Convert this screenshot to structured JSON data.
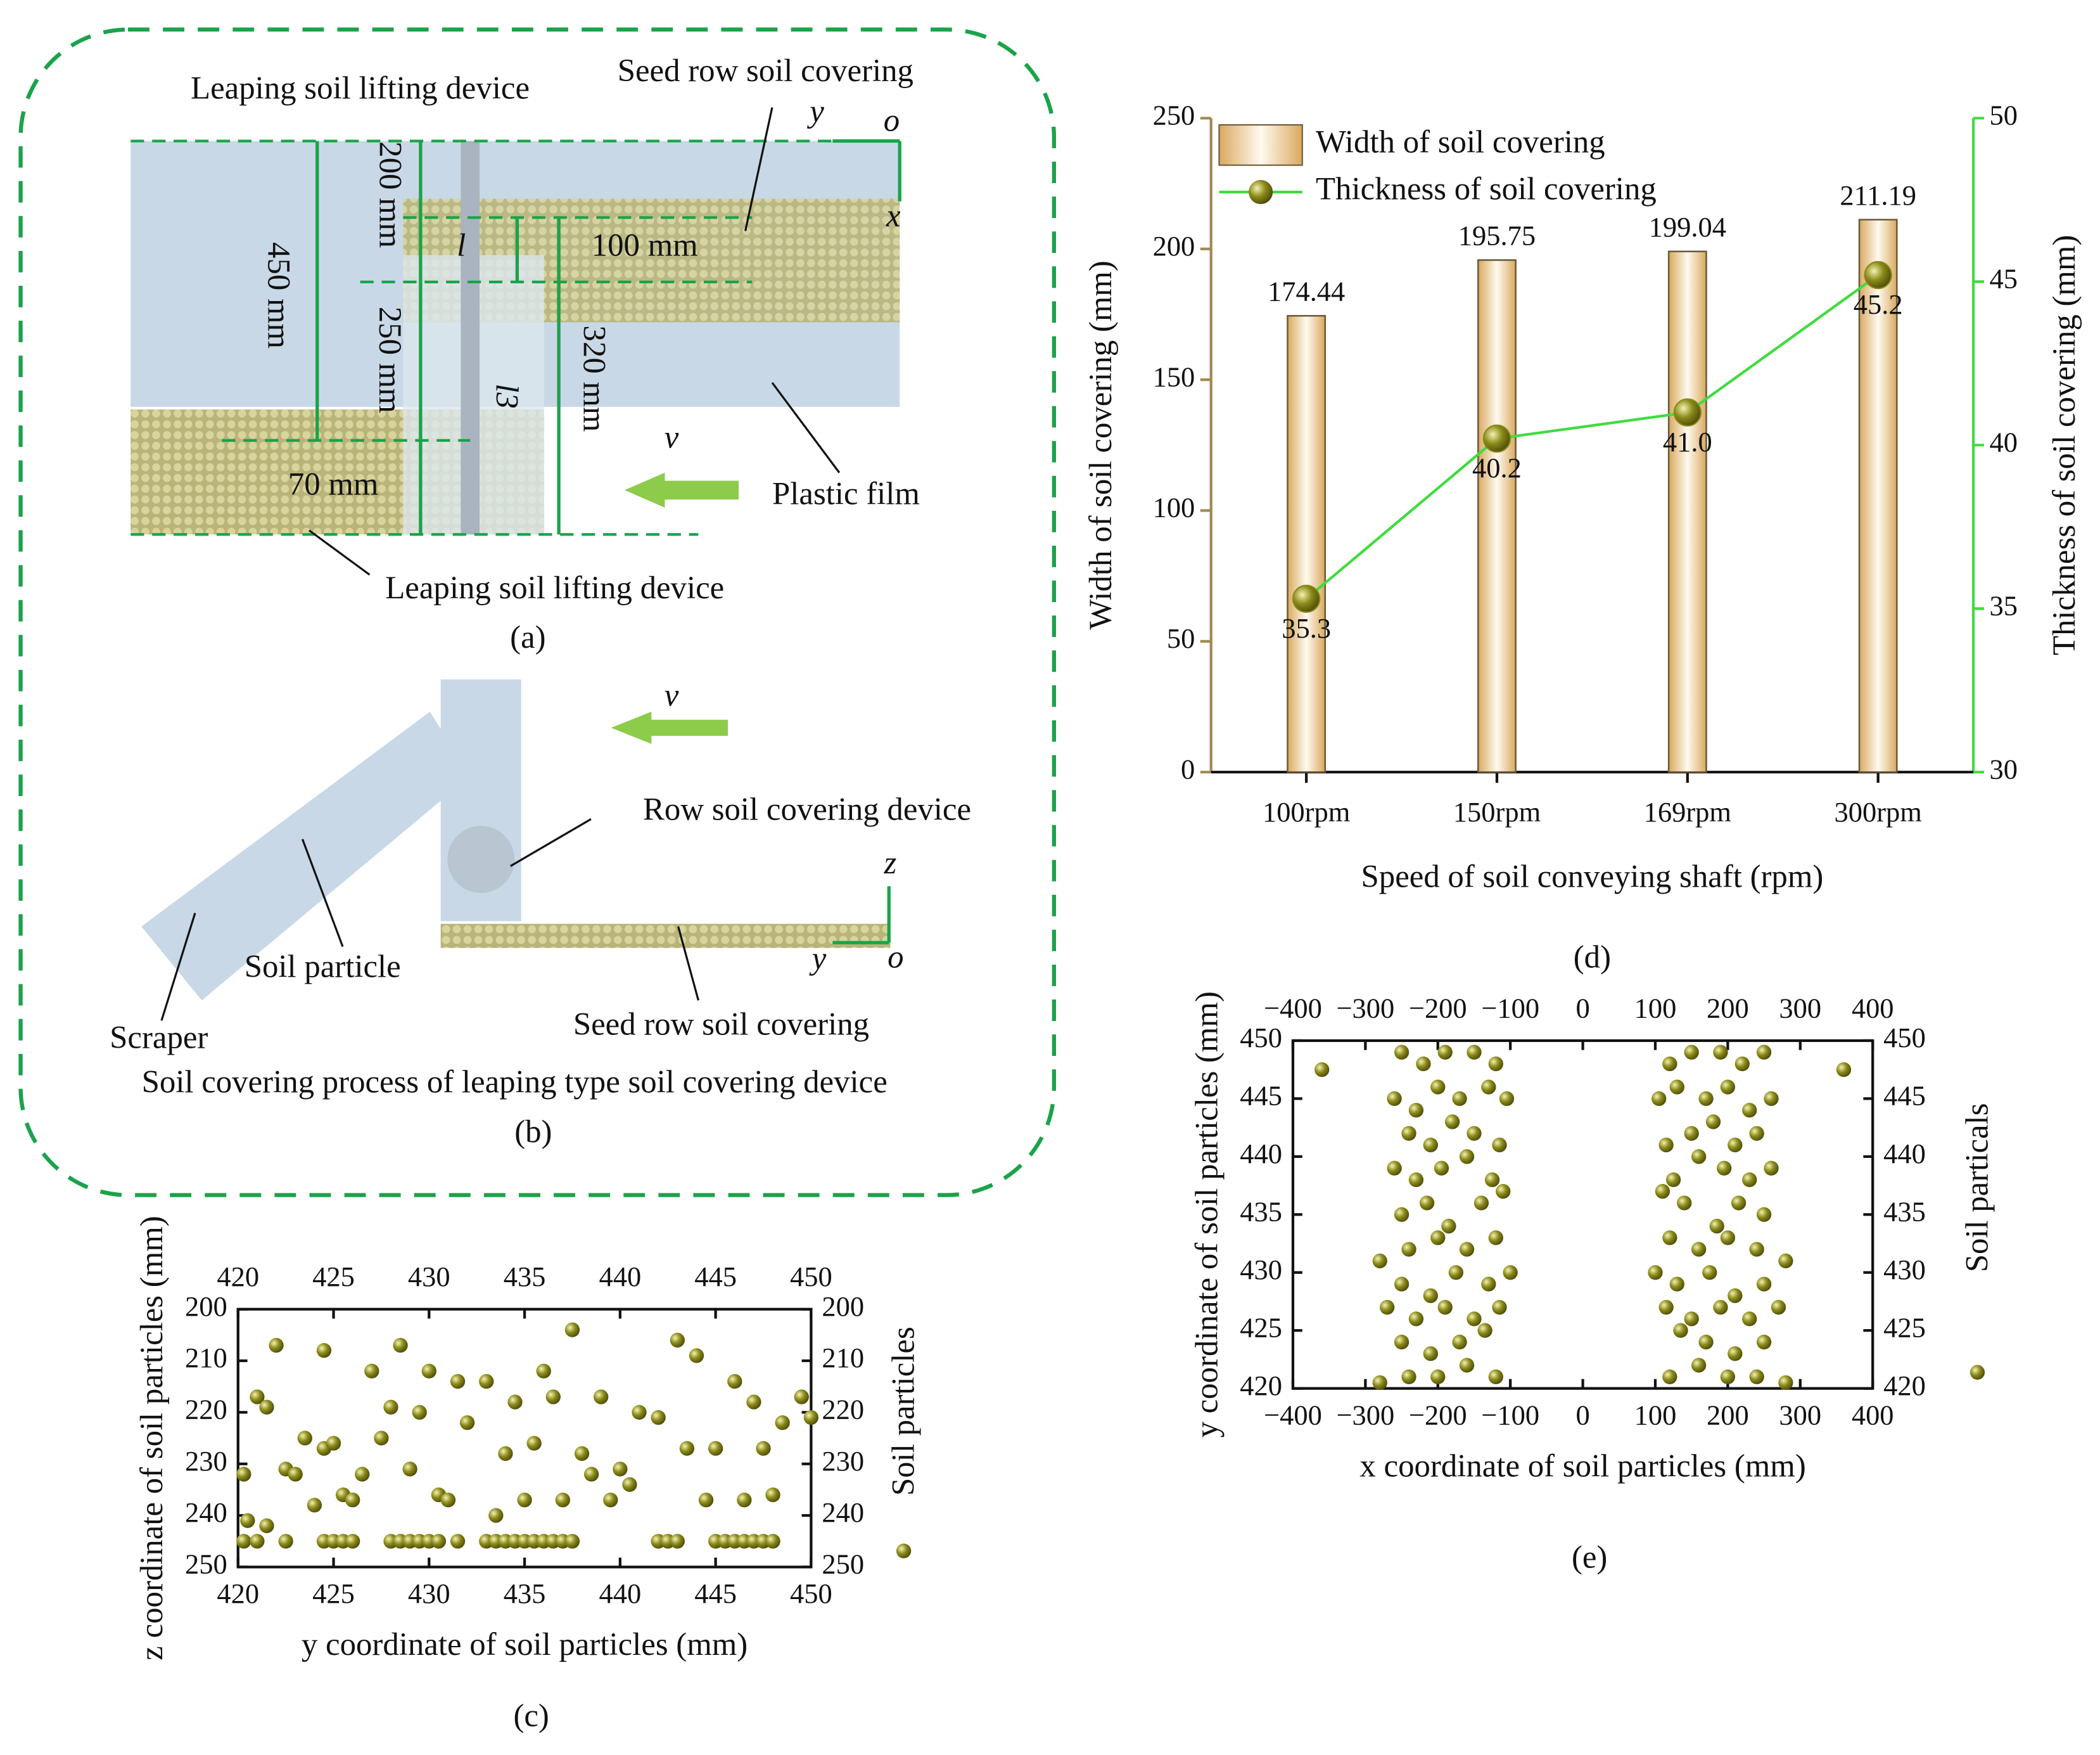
{
  "diagrams": {
    "a": {
      "top_left_label": "Leaping soil lifting device",
      "top_right_label": "Seed row soil covering",
      "axis_y": "y",
      "axis_o": "o",
      "axis_x": "x",
      "dim_450": "450 mm",
      "dim_200": "200 mm",
      "dim_250": "250 mm",
      "dim_100": "100 mm",
      "dim_320": "320 mm",
      "dim_l": "l",
      "dim_l3": "l3",
      "velocity": "v",
      "film_label": "Plastic film",
      "dim_70": "70 mm",
      "bottom_label": "Leaping soil lifting device",
      "panel_label": "(a)"
    },
    "b": {
      "velocity": "v",
      "device_label": "Row soil covering device",
      "axis_z": "z",
      "particle_label": "Soil particle",
      "axis_y": "y",
      "axis_o": "o",
      "scraper_label": "Scraper",
      "seed_label": "Seed row soil covering",
      "caption": "Soil covering process of leaping type soil covering device",
      "panel_label": "(b)"
    }
  },
  "chart_data": [
    {
      "type": "bar",
      "panel_label": "(d)",
      "x_label": "Speed of soil conveying shaft (rpm)",
      "y_label": "Width of soil covering (mm)",
      "y2_label": "Thickness of soil covering (mm)",
      "categories": [
        "100rpm",
        "150rpm",
        "169rpm",
        "300rpm"
      ],
      "ylim": [
        0,
        250
      ],
      "yticks": [
        0,
        50,
        100,
        150,
        200,
        250
      ],
      "y2lim": [
        30,
        50
      ],
      "y2ticks": [
        30,
        35,
        40,
        45,
        50
      ],
      "y_color": "#a08a55",
      "y2_color": "#3fdc3f",
      "legend": "upper left",
      "series": [
        {
          "name": "Width of soil covering",
          "color": "#e9c88e",
          "values": [
            174.44,
            195.75,
            199.04,
            211.19
          ]
        },
        {
          "name": "Thickness of soil covering",
          "kind": "line",
          "axis": "y2",
          "color": "#3fdc3f",
          "marker_color": "#8a8a1a",
          "values": [
            35.3,
            40.2,
            41.0,
            45.2
          ],
          "value_labels": [
            "35.3",
            "40.2",
            "41.0",
            "45.2"
          ]
        }
      ]
    },
    {
      "type": "scatter",
      "panel_label": "(c)",
      "y_inverted": true,
      "x_label": "y coordinate of soil particles (mm)",
      "y_label": "z coordinate of soil particles (mm)",
      "xlim": [
        420,
        450
      ],
      "xticks": [
        420,
        425,
        430,
        435,
        440,
        445,
        450
      ],
      "ylim": [
        200,
        250
      ],
      "yticks": [
        200,
        210,
        220,
        230,
        240,
        250
      ],
      "series": [
        {
          "name": "Soil particles",
          "color": "#8a8a1a",
          "x": [
            420.3,
            421,
            422.5,
            424.5,
            425,
            425.5,
            426,
            428,
            428.5,
            429,
            429.5,
            430,
            430.5,
            431.5,
            433,
            433.5,
            434,
            434.5,
            435,
            435.5,
            436,
            436.5,
            437,
            437.5,
            442,
            442.5,
            443,
            445,
            445.5,
            446,
            446.5,
            447,
            447.5,
            448,
            421,
            421.5,
            422,
            422.5,
            423,
            423.5,
            424,
            424.5,
            424.5,
            425,
            425.5,
            426,
            426.5,
            427,
            427.5,
            428,
            428.5,
            429,
            429.5,
            430,
            430.5,
            431,
            431.5,
            432,
            433,
            433.5,
            434,
            434.5,
            435,
            435.5,
            436,
            436.5,
            437,
            437.5,
            438,
            438.5,
            439,
            439.5,
            440,
            440.5,
            441,
            442,
            443,
            443.5,
            444,
            444.5,
            445,
            446,
            446.5,
            447,
            447.5,
            448,
            448.5,
            449.5,
            450,
            420.3,
            420.5,
            421.5
          ],
          "y": [
            245,
            245,
            245,
            245,
            245,
            245,
            245,
            245,
            245,
            245,
            245,
            245,
            245,
            245,
            245,
            245,
            245,
            245,
            245,
            245,
            245,
            245,
            245,
            245,
            245,
            245,
            245,
            245,
            245,
            245,
            245,
            245,
            245,
            245,
            217,
            219,
            207,
            231,
            232,
            225,
            238,
            227,
            208,
            226,
            236,
            237,
            232,
            212,
            225,
            219,
            207,
            231,
            220,
            212,
            236,
            237,
            214,
            222,
            214,
            240,
            228,
            218,
            237,
            226,
            212,
            217,
            237,
            204,
            228,
            232,
            217,
            237,
            231,
            234,
            220,
            221,
            206,
            227,
            209,
            237,
            227,
            214,
            237,
            218,
            227,
            236,
            222,
            217,
            221,
            232,
            241,
            242
          ]
        }
      ]
    },
    {
      "type": "scatter",
      "panel_label": "(e)",
      "x_label": "x coordinate of soil particles (mm)",
      "y_label": "y coordinate of soil particles (mm)",
      "xlim": [
        -400,
        400
      ],
      "xticks": [
        {
          "value": -400,
          "label": "−400"
        },
        {
          "value": -300,
          "label": "−300"
        },
        {
          "value": -200,
          "label": "−200"
        },
        {
          "value": -100,
          "label": "−100"
        },
        0,
        100,
        200,
        300,
        400
      ],
      "ylim": [
        420,
        450
      ],
      "yticks": [
        420,
        425,
        430,
        435,
        440,
        445,
        450
      ],
      "series": [
        {
          "name": "Soil particals",
          "color": "#8a8a1a",
          "x": [
            -250,
            -220,
            -190,
            -150,
            -120,
            -260,
            -230,
            -200,
            -170,
            -130,
            -105,
            -240,
            -210,
            -180,
            -150,
            -115,
            -260,
            -230,
            -195,
            -160,
            -125,
            -250,
            -215,
            -185,
            -140,
            -110,
            -240,
            -200,
            -160,
            -120,
            -280,
            -250,
            -210,
            -175,
            -130,
            -100,
            -270,
            -230,
            -190,
            -150,
            -115,
            -250,
            -210,
            -170,
            -135,
            -240,
            -200,
            -160,
            -120,
            -280,
            -360,
            250,
            220,
            190,
            150,
            120,
            260,
            230,
            200,
            170,
            130,
            105,
            240,
            210,
            180,
            150,
            115,
            260,
            230,
            195,
            160,
            125,
            250,
            215,
            185,
            140,
            110,
            240,
            200,
            160,
            120,
            280,
            250,
            210,
            175,
            130,
            100,
            270,
            230,
            190,
            150,
            115,
            250,
            210,
            170,
            135,
            240,
            200,
            160,
            120,
            280,
            360
          ],
          "y": [
            449,
            448,
            449,
            449,
            448,
            445,
            444,
            446,
            445,
            446,
            445,
            442,
            441,
            443,
            442,
            441,
            439,
            438,
            439,
            440,
            438,
            435,
            436,
            434,
            436,
            437,
            432,
            433,
            432,
            433,
            431,
            429,
            428,
            430,
            429,
            430,
            427,
            426,
            427,
            426,
            427,
            424,
            423,
            424,
            425,
            421,
            421,
            422,
            421,
            420.5,
            447.5,
            449,
            448,
            449,
            449,
            448,
            445,
            444,
            446,
            445,
            446,
            445,
            442,
            441,
            443,
            442,
            441,
            439,
            438,
            439,
            440,
            438,
            435,
            436,
            434,
            436,
            437,
            432,
            433,
            432,
            433,
            431,
            429,
            428,
            430,
            429,
            430,
            427,
            426,
            427,
            426,
            427,
            424,
            423,
            424,
            425,
            421,
            421,
            422,
            421,
            420.5,
            447.5
          ]
        }
      ]
    }
  ]
}
